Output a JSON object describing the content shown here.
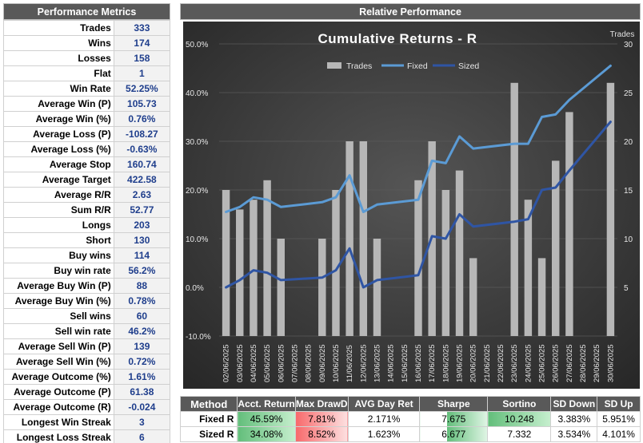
{
  "metrics": {
    "title": "Performance Metrics",
    "rows": [
      {
        "label": "Trades",
        "value": "333"
      },
      {
        "label": "Wins",
        "value": "174"
      },
      {
        "label": "Losses",
        "value": "158"
      },
      {
        "label": "Flat",
        "value": "1"
      },
      {
        "label": "Win Rate",
        "value": "52.25%"
      },
      {
        "label": "Average Win (P)",
        "value": "105.73"
      },
      {
        "label": "Average Win (%)",
        "value": "0.76%"
      },
      {
        "label": "Average Loss (P)",
        "value": "-108.27"
      },
      {
        "label": "Average Loss (%)",
        "value": "-0.63%"
      },
      {
        "label": "Average Stop",
        "value": "160.74"
      },
      {
        "label": "Average Target",
        "value": "422.58"
      },
      {
        "label": "Average R/R",
        "value": "2.63"
      },
      {
        "label": "Sum R/R",
        "value": "52.77"
      },
      {
        "label": "Longs",
        "value": "203"
      },
      {
        "label": "Short",
        "value": "130"
      },
      {
        "label": "Buy wins",
        "value": "114"
      },
      {
        "label": "Buy win rate",
        "value": "56.2%"
      },
      {
        "label": "Average Buy Win (P)",
        "value": "88"
      },
      {
        "label": "Average Buy Win (%)",
        "value": "0.78%"
      },
      {
        "label": "Sell wins",
        "value": "60"
      },
      {
        "label": "Sell win rate",
        "value": "46.2%"
      },
      {
        "label": "Average Sell Win (P)",
        "value": "139"
      },
      {
        "label": "Average Sell Win (%)",
        "value": "0.72%"
      },
      {
        "label": "Average Outcome (%)",
        "value": "1.61%"
      },
      {
        "label": "Average Outcome (P)",
        "value": "61.38"
      },
      {
        "label": "Average Outcome (R)",
        "value": "-0.024"
      },
      {
        "label": "Longest Win Streak",
        "value": "3"
      },
      {
        "label": "Longest Loss Streak",
        "value": "6"
      }
    ]
  },
  "relative": {
    "title": "Relative Performance"
  },
  "chart_data": {
    "type": "bar+line",
    "title": "Cumulative Returns - R",
    "right_axis_title": "Trades",
    "legend_position": "top",
    "grid": true,
    "categories": [
      "02/06/2025",
      "03/06/2025",
      "04/06/2025",
      "05/06/2025",
      "06/06/2025",
      "07/06/2025",
      "08/06/2025",
      "09/06/2025",
      "10/06/2025",
      "11/06/2025",
      "12/06/2025",
      "13/06/2025",
      "14/06/2025",
      "15/06/2025",
      "16/06/2025",
      "17/06/2025",
      "18/06/2025",
      "19/06/2025",
      "20/06/2025",
      "21/06/2025",
      "22/06/2025",
      "23/06/2025",
      "24/06/2025",
      "25/06/2025",
      "26/06/2025",
      "27/06/2025",
      "28/06/2025",
      "29/06/2025",
      "30/06/2025"
    ],
    "left_axis": {
      "min": -10,
      "max": 50,
      "ticks": [
        "-10.0%",
        "0.0%",
        "10.0%",
        "20.0%",
        "30.0%",
        "40.0%",
        "50.0%"
      ]
    },
    "right_axis": {
      "min": 0,
      "max": 30,
      "ticks": [
        "5",
        "10",
        "15",
        "20",
        "25",
        "30"
      ]
    },
    "series": [
      {
        "name": "Trades",
        "kind": "bar",
        "axis": "right",
        "color": "#b7b7b7",
        "values": [
          15,
          13,
          14,
          16,
          10,
          0,
          0,
          10,
          15,
          20,
          20,
          10,
          0,
          0,
          16,
          20,
          15,
          17,
          8,
          0,
          0,
          26,
          14,
          8,
          18,
          23,
          0,
          0,
          26
        ]
      },
      {
        "name": "Fixed",
        "kind": "line",
        "axis": "left",
        "color": "#5b9bd5",
        "values": [
          15.5,
          16.5,
          18.5,
          18.0,
          16.5,
          null,
          null,
          17.5,
          18.5,
          23.0,
          15.5,
          17.0,
          null,
          null,
          18.0,
          26.0,
          25.5,
          31.0,
          28.5,
          null,
          null,
          29.5,
          29.5,
          35.0,
          35.5,
          38.5,
          null,
          null,
          45.5
        ]
      },
      {
        "name": "Sized",
        "kind": "line",
        "axis": "left",
        "color": "#2f55a4",
        "values": [
          0.0,
          1.5,
          3.5,
          3.0,
          1.5,
          null,
          null,
          2.0,
          3.5,
          8.0,
          0.0,
          1.5,
          null,
          null,
          2.5,
          10.5,
          10.0,
          15.0,
          12.5,
          null,
          null,
          13.5,
          14.0,
          20.0,
          20.5,
          24.0,
          null,
          null,
          34.0
        ]
      }
    ]
  },
  "stats": {
    "headers": [
      "Method",
      "Acct. Return",
      "Max DrawD",
      "AVG Day Ret",
      "Sharpe",
      "Sortino",
      "SD Down",
      "SD Up"
    ],
    "rows": [
      {
        "method": "Fixed R",
        "values": [
          "45.59%",
          "7.81%",
          "2.171%",
          "7.675",
          "10.248",
          "3.383%",
          "5.951%"
        ]
      },
      {
        "method": "Sized R",
        "values": [
          "34.08%",
          "8.52%",
          "1.623%",
          "6.677",
          "7.332",
          "3.534%",
          "4.101%"
        ]
      }
    ]
  },
  "colors": {
    "header_bg": "#595959",
    "value_text": "#1f3e8c",
    "chart_bg": "#3a3a3a",
    "good": "#63be7b",
    "bad": "#f8696b"
  }
}
